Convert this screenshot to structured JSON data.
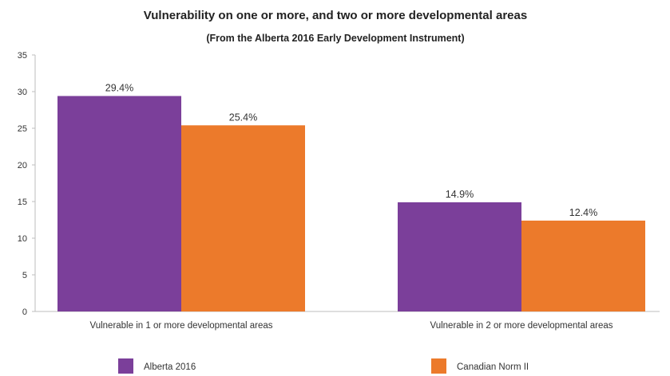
{
  "chart_data": {
    "type": "bar",
    "title": "Vulnerability on one or more, and two or more developmental areas",
    "subtitle": "(From the Alberta 2016 Early Development Instrument)",
    "xlabel": "",
    "ylabel": "",
    "ylim": [
      0,
      35
    ],
    "yticks": [
      "0",
      "5",
      "10",
      "15",
      "20",
      "25",
      "30",
      "35"
    ],
    "grid": false,
    "legend_position": "bottom",
    "categories": [
      "Vulnerable in 1 or more developmental areas",
      "Vulnerable in 2 or more developmental areas"
    ],
    "series": [
      {
        "name": "Alberta 2016",
        "color": "#7b3f9a",
        "values": [
          29.4,
          14.9
        ],
        "labels": [
          "29.4%",
          "14.9%"
        ]
      },
      {
        "name": "Canadian Norm II",
        "color": "#ec7a2b",
        "values": [
          25.4,
          12.4
        ],
        "labels": [
          "25.4%",
          "12.4%"
        ]
      }
    ]
  }
}
